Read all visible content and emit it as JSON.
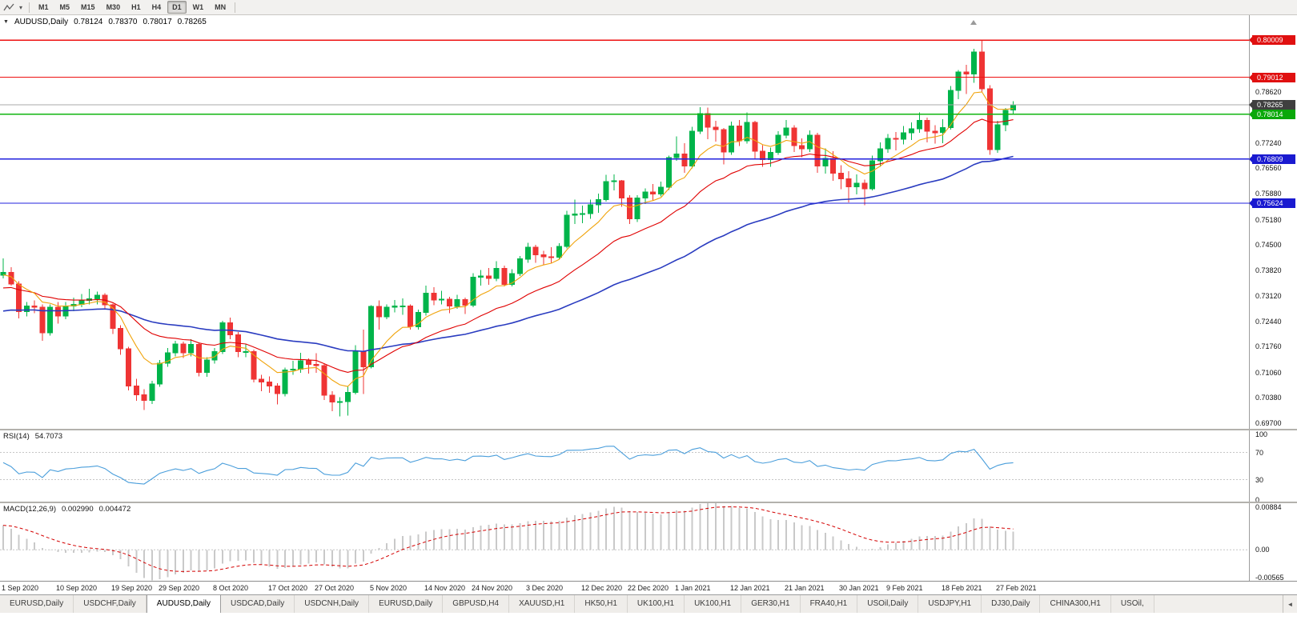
{
  "icons": {
    "one_click": "▼",
    "dropdown": "▾",
    "tab_scroll_left": "◄"
  },
  "toolbar": {
    "timeframes": [
      "M1",
      "M5",
      "M15",
      "M30",
      "H1",
      "H4",
      "D1",
      "W1",
      "MN"
    ],
    "active": "D1"
  },
  "chart": {
    "symbol_title": "AUDUSD,Daily",
    "ohlc": {
      "open": "0.78124",
      "high": "0.78370",
      "low": "0.78017",
      "close": "0.78265"
    },
    "up_color": "#00b44a",
    "down_color": "#ef3434",
    "price_axis": {
      "min": 0.6955,
      "max": 0.8068,
      "plain_ticks": [
        "0.78620",
        "0.77240",
        "0.76560",
        "0.75880",
        "0.75180",
        "0.74500",
        "0.73820",
        "0.73120",
        "0.72440",
        "0.71760",
        "0.71060",
        "0.70380",
        "0.69700"
      ]
    },
    "levels": [
      {
        "label": "0.80009",
        "price": 0.80009,
        "line_color": "#ee1111",
        "tag_color": "#e01010"
      },
      {
        "label": "0.79012",
        "price": 0.79012,
        "line_color": "#ee1111",
        "tag_color": "#e01010"
      },
      {
        "label": "0.78265",
        "price": 0.78265,
        "line_color": "#a8a8a8",
        "tag_color": "#3f3f3f",
        "current": true
      },
      {
        "label": "0.78014",
        "price": 0.78014,
        "line_color": "#10b410",
        "tag_color": "#0aa80a"
      },
      {
        "label": "0.76809",
        "price": 0.76809,
        "line_color": "#2222dd",
        "tag_color": "#1a1ad0"
      },
      {
        "label": "0.75624",
        "price": 0.75624,
        "line_color": "#2222dd",
        "tag_color": "#1a1ad0"
      }
    ],
    "ma": {
      "fast": {
        "period": 8,
        "seed": 0.7368,
        "color": "#f0a30a"
      },
      "mid": {
        "period": 21,
        "seed": 0.733,
        "color": "#e00000"
      },
      "slow": {
        "period": 55,
        "seed": 0.7268,
        "color": "#2a3cc0"
      }
    }
  },
  "rsi": {
    "name": "RSI(14)",
    "value": "54.7073",
    "period": 14,
    "color": "#4a9edb",
    "levels": [
      70,
      30
    ],
    "axis_labels": [
      {
        "label": "100",
        "value": 100
      },
      {
        "label": "70",
        "value": 70
      },
      {
        "label": "30",
        "value": 30
      },
      {
        "label": "0",
        "value": 0
      }
    ]
  },
  "macd": {
    "name": "MACD(12,26,9)",
    "main_value": "0.002990",
    "signal_value": "0.004472",
    "fast": 12,
    "slow": 26,
    "signal": 9,
    "max": 0.00884,
    "min": -0.00565,
    "hist_color": "#c9c9c9",
    "signal_color": "#d40000",
    "axis_labels": [
      {
        "label": "0.00884",
        "value": 0.00884
      },
      {
        "label": "0.00",
        "value": 0
      },
      {
        "label": "-0.00565",
        "value": -0.00565
      }
    ]
  },
  "date_axis": {
    "labels": [
      {
        "text": "1 Sep 2020",
        "bar": 0
      },
      {
        "text": "10 Sep 2020",
        "bar": 7
      },
      {
        "text": "19 Sep 2020",
        "bar": 14
      },
      {
        "text": "29 Sep 2020",
        "bar": 20
      },
      {
        "text": "8 Oct 2020",
        "bar": 27
      },
      {
        "text": "17 Oct 2020",
        "bar": 34
      },
      {
        "text": "27 Oct 2020",
        "bar": 40
      },
      {
        "text": "5 Nov 2020",
        "bar": 47
      },
      {
        "text": "14 Nov 2020",
        "bar": 54
      },
      {
        "text": "24 Nov 2020",
        "bar": 60
      },
      {
        "text": "3 Dec 2020",
        "bar": 67
      },
      {
        "text": "12 Dec 2020",
        "bar": 74
      },
      {
        "text": "22 Dec 2020",
        "bar": 80
      },
      {
        "text": "1 Jan 2021",
        "bar": 86
      },
      {
        "text": "12 Jan 2021",
        "bar": 93
      },
      {
        "text": "21 Jan 2021",
        "bar": 100
      },
      {
        "text": "30 Jan 2021",
        "bar": 107
      },
      {
        "text": "9 Feb 2021",
        "bar": 113
      },
      {
        "text": "18 Feb 2021",
        "bar": 120
      },
      {
        "text": "27 Feb 2021",
        "bar": 127
      }
    ]
  },
  "tabs": {
    "active_index": 2,
    "items": [
      "EURUSD,Daily",
      "USDCHF,Daily",
      "AUDUSD,Daily",
      "USDCAD,Daily",
      "USDCNH,Daily",
      "EURUSD,Daily",
      "GBPUSD,H4",
      "XAUUSD,H1",
      "HK50,H1",
      "UK100,H1",
      "UK100,H1",
      "GER30,H1",
      "FRA40,H1",
      "USOil,Daily",
      "USDJPY,H1",
      "DJ30,Daily",
      "CHINA300,H1",
      "USOil,"
    ]
  },
  "chart_data": {
    "type": "candlestick",
    "symbol": "AUDUSD",
    "timeframe": "Daily",
    "ohlc_last": {
      "open": 0.78124,
      "high": 0.7837,
      "low": 0.78017,
      "close": 0.78265
    },
    "candles": [
      [
        0.7368,
        0.7414,
        0.736,
        0.7376
      ],
      [
        0.7376,
        0.739,
        0.734,
        0.7345
      ],
      [
        0.7345,
        0.7352,
        0.7252,
        0.727
      ],
      [
        0.727,
        0.7296,
        0.7258,
        0.7285
      ],
      [
        0.7285,
        0.73,
        0.7266,
        0.7282
      ],
      [
        0.7282,
        0.729,
        0.7192,
        0.7213
      ],
      [
        0.7213,
        0.729,
        0.7206,
        0.7282
      ],
      [
        0.7282,
        0.7296,
        0.7238,
        0.7259
      ],
      [
        0.7259,
        0.7296,
        0.725,
        0.7285
      ],
      [
        0.7285,
        0.7308,
        0.7272,
        0.729
      ],
      [
        0.729,
        0.7318,
        0.7282,
        0.7301
      ],
      [
        0.7301,
        0.7332,
        0.729,
        0.7305
      ],
      [
        0.7305,
        0.7324,
        0.729,
        0.7314
      ],
      [
        0.7314,
        0.732,
        0.7276,
        0.7289
      ],
      [
        0.7289,
        0.7292,
        0.721,
        0.7225
      ],
      [
        0.7225,
        0.7234,
        0.7154,
        0.717
      ],
      [
        0.717,
        0.7176,
        0.7058,
        0.707
      ],
      [
        0.707,
        0.709,
        0.703,
        0.7047
      ],
      [
        0.7047,
        0.7062,
        0.7006,
        0.7031
      ],
      [
        0.7031,
        0.7084,
        0.7022,
        0.7076
      ],
      [
        0.7076,
        0.714,
        0.7068,
        0.7132
      ],
      [
        0.7132,
        0.7172,
        0.7122,
        0.716
      ],
      [
        0.716,
        0.7192,
        0.715,
        0.7183
      ],
      [
        0.7183,
        0.719,
        0.7146,
        0.716
      ],
      [
        0.716,
        0.7196,
        0.715,
        0.7182
      ],
      [
        0.7182,
        0.7186,
        0.7096,
        0.7107
      ],
      [
        0.7107,
        0.7148,
        0.7095,
        0.714
      ],
      [
        0.714,
        0.7172,
        0.713,
        0.7163
      ],
      [
        0.7163,
        0.7246,
        0.7156,
        0.724
      ],
      [
        0.724,
        0.7254,
        0.7196,
        0.7208
      ],
      [
        0.7208,
        0.7216,
        0.7148,
        0.7163
      ],
      [
        0.7163,
        0.7184,
        0.7148,
        0.7163
      ],
      [
        0.7163,
        0.7168,
        0.708,
        0.7089
      ],
      [
        0.7089,
        0.71,
        0.7056,
        0.7081
      ],
      [
        0.7081,
        0.7096,
        0.7052,
        0.707
      ],
      [
        0.707,
        0.7078,
        0.7021,
        0.705
      ],
      [
        0.705,
        0.712,
        0.7042,
        0.7113
      ],
      [
        0.7113,
        0.7138,
        0.71,
        0.7115
      ],
      [
        0.7115,
        0.716,
        0.7106,
        0.7138
      ],
      [
        0.7138,
        0.7144,
        0.7104,
        0.7128
      ],
      [
        0.7128,
        0.7158,
        0.7106,
        0.7125
      ],
      [
        0.7125,
        0.713,
        0.7032,
        0.7045
      ],
      [
        0.7045,
        0.7056,
        0.7002,
        0.7027
      ],
      [
        0.7027,
        0.704,
        0.6988,
        0.7028
      ],
      [
        0.7028,
        0.707,
        0.699,
        0.7053
      ],
      [
        0.7053,
        0.718,
        0.7048,
        0.7164
      ],
      [
        0.7164,
        0.7222,
        0.7049,
        0.7122
      ],
      [
        0.7122,
        0.7288,
        0.7118,
        0.7284
      ],
      [
        0.7284,
        0.73,
        0.7222,
        0.7256
      ],
      [
        0.7256,
        0.729,
        0.725,
        0.7282
      ],
      [
        0.7282,
        0.7302,
        0.7268,
        0.7285
      ],
      [
        0.7285,
        0.7306,
        0.7262,
        0.7285
      ],
      [
        0.7285,
        0.729,
        0.7222,
        0.723
      ],
      [
        0.723,
        0.7276,
        0.7222,
        0.7268
      ],
      [
        0.7268,
        0.734,
        0.726,
        0.732
      ],
      [
        0.732,
        0.7336,
        0.7288,
        0.7302
      ],
      [
        0.7302,
        0.7326,
        0.729,
        0.7304
      ],
      [
        0.7304,
        0.731,
        0.7266,
        0.7285
      ],
      [
        0.7285,
        0.7316,
        0.7278,
        0.7303
      ],
      [
        0.7303,
        0.7308,
        0.7264,
        0.7288
      ],
      [
        0.7288,
        0.7374,
        0.7282,
        0.7363
      ],
      [
        0.7363,
        0.7382,
        0.734,
        0.7366
      ],
      [
        0.7366,
        0.7388,
        0.7342,
        0.736
      ],
      [
        0.736,
        0.7406,
        0.7352,
        0.7387
      ],
      [
        0.7387,
        0.7394,
        0.7338,
        0.7344
      ],
      [
        0.7344,
        0.7384,
        0.7338,
        0.7373
      ],
      [
        0.7373,
        0.742,
        0.7366,
        0.7412
      ],
      [
        0.7412,
        0.7456,
        0.7402,
        0.7444
      ],
      [
        0.7444,
        0.745,
        0.7402,
        0.7423
      ],
      [
        0.7423,
        0.7434,
        0.7396,
        0.7418
      ],
      [
        0.7418,
        0.7444,
        0.7402,
        0.7417
      ],
      [
        0.7417,
        0.7454,
        0.741,
        0.7446
      ],
      [
        0.7446,
        0.7542,
        0.744,
        0.753
      ],
      [
        0.753,
        0.7572,
        0.7506,
        0.7533
      ],
      [
        0.7533,
        0.7556,
        0.7508,
        0.7534
      ],
      [
        0.7534,
        0.7572,
        0.752,
        0.7558
      ],
      [
        0.7558,
        0.7588,
        0.7536,
        0.7572
      ],
      [
        0.7572,
        0.7639,
        0.7566,
        0.762
      ],
      [
        0.762,
        0.764,
        0.7596,
        0.7622
      ],
      [
        0.7622,
        0.7624,
        0.7552,
        0.7576
      ],
      [
        0.7576,
        0.7584,
        0.7506,
        0.752
      ],
      [
        0.752,
        0.7584,
        0.7512,
        0.7576
      ],
      [
        0.7576,
        0.7602,
        0.756,
        0.7592
      ],
      [
        0.7592,
        0.7614,
        0.757,
        0.7587
      ],
      [
        0.7587,
        0.762,
        0.758,
        0.7605
      ],
      [
        0.7605,
        0.769,
        0.7598,
        0.7685
      ],
      [
        0.7685,
        0.7742,
        0.7676,
        0.7694
      ],
      [
        0.7694,
        0.7724,
        0.7644,
        0.7662
      ],
      [
        0.7662,
        0.7768,
        0.7656,
        0.7756
      ],
      [
        0.7756,
        0.782,
        0.7748,
        0.7803
      ],
      [
        0.7803,
        0.7819,
        0.7734,
        0.7767
      ],
      [
        0.7767,
        0.7784,
        0.7728,
        0.776
      ],
      [
        0.776,
        0.7764,
        0.7666,
        0.77
      ],
      [
        0.77,
        0.7782,
        0.7692,
        0.777
      ],
      [
        0.777,
        0.7786,
        0.7716,
        0.773
      ],
      [
        0.773,
        0.7806,
        0.7722,
        0.778
      ],
      [
        0.778,
        0.7784,
        0.768,
        0.7702
      ],
      [
        0.7702,
        0.7718,
        0.766,
        0.7679
      ],
      [
        0.7679,
        0.7712,
        0.766,
        0.7699
      ],
      [
        0.7699,
        0.7756,
        0.7692,
        0.7745
      ],
      [
        0.7745,
        0.7786,
        0.7736,
        0.7764
      ],
      [
        0.7764,
        0.7772,
        0.77,
        0.7717
      ],
      [
        0.7717,
        0.7736,
        0.7686,
        0.7708
      ],
      [
        0.7708,
        0.7758,
        0.77,
        0.7745
      ],
      [
        0.7745,
        0.7752,
        0.7644,
        0.7662
      ],
      [
        0.7662,
        0.771,
        0.7642,
        0.7683
      ],
      [
        0.7683,
        0.7702,
        0.7622,
        0.7643
      ],
      [
        0.7643,
        0.7664,
        0.76,
        0.7628
      ],
      [
        0.7628,
        0.7648,
        0.7564,
        0.7606
      ],
      [
        0.7606,
        0.764,
        0.7586,
        0.7616
      ],
      [
        0.7616,
        0.7626,
        0.7557,
        0.7601
      ],
      [
        0.7601,
        0.769,
        0.7596,
        0.7676
      ],
      [
        0.7676,
        0.7726,
        0.766,
        0.7708
      ],
      [
        0.7708,
        0.7748,
        0.7698,
        0.7736
      ],
      [
        0.7736,
        0.7754,
        0.7704,
        0.7734
      ],
      [
        0.7734,
        0.777,
        0.772,
        0.7751
      ],
      [
        0.7751,
        0.778,
        0.7732,
        0.7762
      ],
      [
        0.7762,
        0.7806,
        0.7752,
        0.7785
      ],
      [
        0.7785,
        0.7792,
        0.7726,
        0.7756
      ],
      [
        0.7756,
        0.7772,
        0.7722,
        0.7752
      ],
      [
        0.7752,
        0.7788,
        0.7724,
        0.7765
      ],
      [
        0.7765,
        0.7878,
        0.776,
        0.7866
      ],
      [
        0.7866,
        0.792,
        0.7842,
        0.7915
      ],
      [
        0.7915,
        0.7934,
        0.7856,
        0.791
      ],
      [
        0.791,
        0.7978,
        0.7886,
        0.7969
      ],
      [
        0.7969,
        0.8001,
        0.7862,
        0.787
      ],
      [
        0.787,
        0.788,
        0.7692,
        0.7706
      ],
      [
        0.7706,
        0.7784,
        0.7698,
        0.7773
      ],
      [
        0.7773,
        0.7818,
        0.7756,
        0.7812
      ],
      [
        0.78124,
        0.7837,
        0.78017,
        0.78265
      ]
    ]
  }
}
